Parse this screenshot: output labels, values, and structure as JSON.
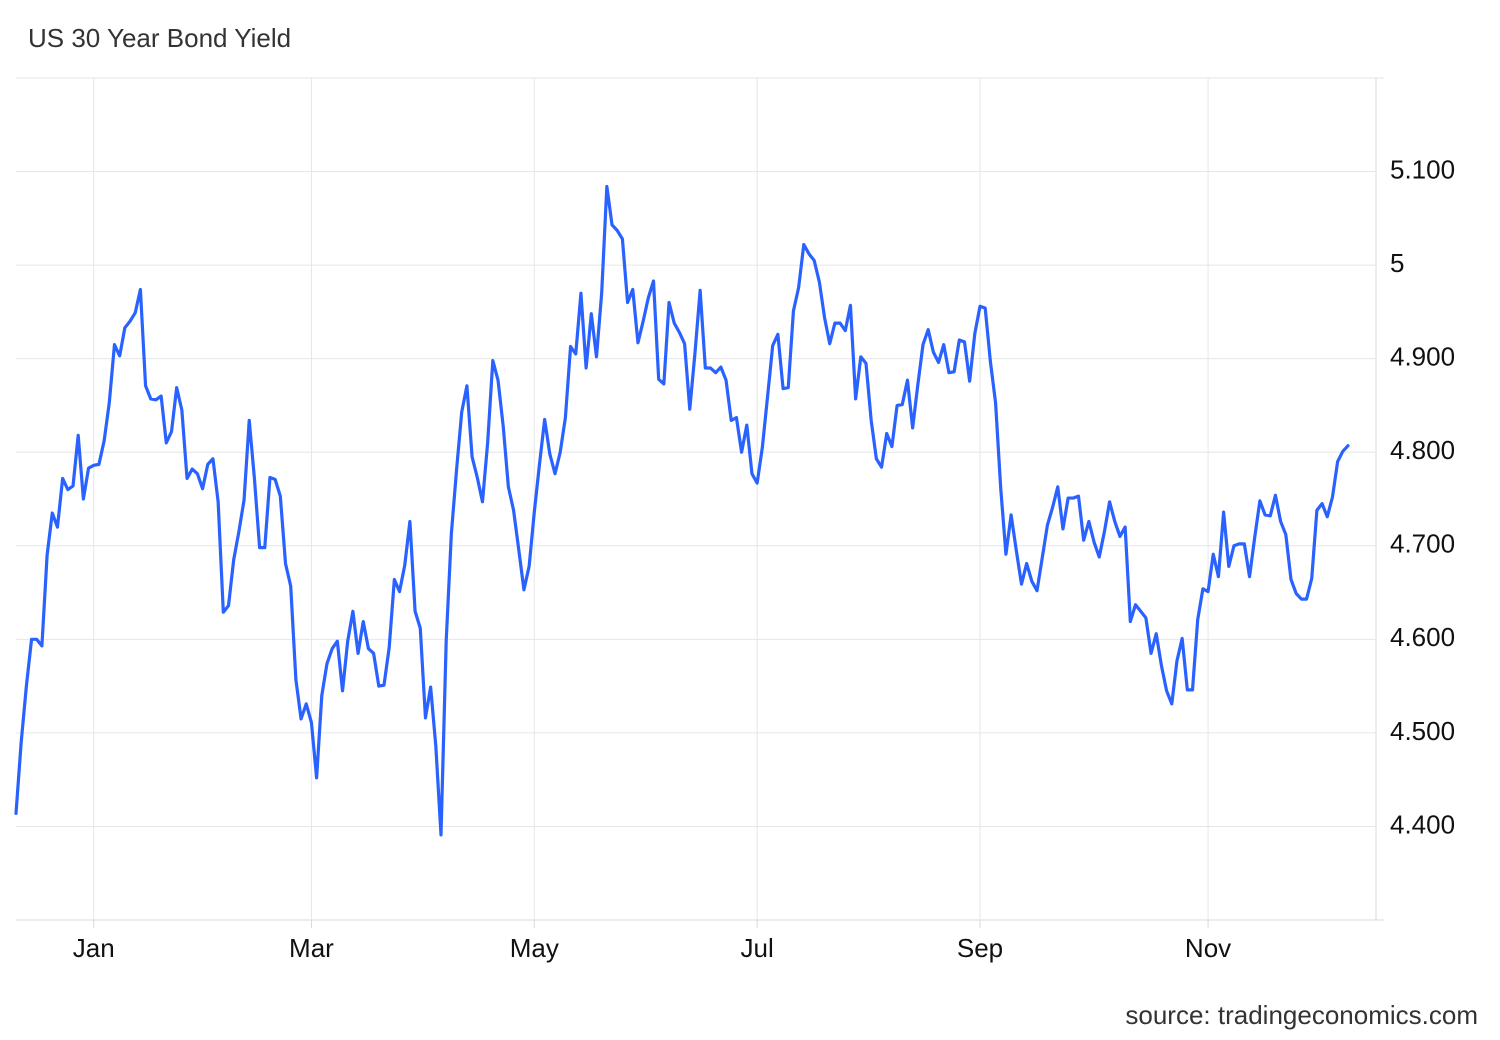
{
  "chart_data": {
    "type": "line",
    "title": "US 30 Year Bond Yield",
    "source": "source: tradingeconomics.com",
    "color": "#2962ff",
    "grid": true,
    "ylim": [
      4.3,
      5.2
    ],
    "yticks": [
      {
        "value": 4.4,
        "label": "4.400"
      },
      {
        "value": 4.5,
        "label": "4.500"
      },
      {
        "value": 4.6,
        "label": "4.600"
      },
      {
        "value": 4.7,
        "label": "4.700"
      },
      {
        "value": 4.8,
        "label": "4.800"
      },
      {
        "value": 4.9,
        "label": "4.900"
      },
      5,
      {
        "value": 5.1,
        "label": "5.100"
      }
    ],
    "categories": [
      null,
      null,
      null,
      null,
      null,
      null,
      null,
      null,
      null,
      null,
      null,
      null,
      null,
      null,
      null,
      "Jan",
      null,
      null,
      null,
      null,
      null,
      null,
      null,
      null,
      null,
      null,
      null,
      null,
      null,
      null,
      null,
      null,
      null,
      null,
      null,
      null,
      null,
      null,
      null,
      null,
      null,
      null,
      null,
      null,
      null,
      null,
      null,
      null,
      null,
      null,
      null,
      null,
      null,
      null,
      null,
      null,
      null,
      "Mar",
      null,
      null,
      null,
      null,
      null,
      null,
      null,
      null,
      null,
      null,
      null,
      null,
      null,
      null,
      null,
      null,
      null,
      null,
      null,
      null,
      null,
      null,
      null,
      null,
      null,
      null,
      null,
      null,
      null,
      null,
      null,
      null,
      null,
      null,
      null,
      null,
      null,
      null,
      null,
      null,
      null,
      null,
      "May",
      null,
      null,
      null,
      null,
      null,
      null,
      null,
      null,
      null,
      null,
      null,
      null,
      null,
      null,
      null,
      null,
      null,
      null,
      null,
      null,
      null,
      null,
      null,
      null,
      null,
      null,
      null,
      null,
      null,
      null,
      null,
      null,
      null,
      null,
      null,
      null,
      null,
      null,
      null,
      null,
      null,
      null,
      "Jul",
      null,
      null,
      null,
      null,
      null,
      null,
      null,
      null,
      null,
      null,
      null,
      null,
      null,
      null,
      null,
      null,
      null,
      null,
      null,
      null,
      null,
      null,
      null,
      null,
      null,
      null,
      null,
      null,
      null,
      null,
      null,
      null,
      null,
      null,
      null,
      null,
      null,
      null,
      null,
      null,
      null,
      null,
      "Sep",
      null,
      null,
      null,
      null,
      null,
      null,
      null,
      null,
      null,
      null,
      null,
      null,
      null,
      null,
      null,
      null,
      null,
      null,
      null,
      null,
      null,
      null,
      null,
      null,
      null,
      null,
      null,
      null,
      null,
      null,
      null,
      null,
      null,
      null,
      null,
      null,
      null,
      null,
      null,
      null,
      null,
      null,
      null,
      "Nov",
      null,
      null,
      null,
      null,
      null,
      null,
      null,
      null,
      null,
      null,
      null,
      null,
      null,
      null,
      null,
      null,
      null,
      null,
      null,
      null,
      null,
      null,
      null,
      null,
      null,
      null,
      null
    ],
    "values": [
      4.414,
      4.49,
      4.55,
      4.6,
      4.6,
      4.593,
      4.69,
      4.735,
      4.72,
      4.772,
      4.76,
      4.764,
      4.818,
      4.75,
      4.783,
      4.786,
      4.787,
      4.812,
      4.853,
      4.915,
      4.903,
      4.933,
      4.94,
      4.949,
      4.974,
      4.871,
      4.857,
      4.856,
      4.86,
      4.81,
      4.822,
      4.869,
      4.845,
      4.772,
      4.782,
      4.777,
      4.761,
      4.787,
      4.793,
      4.747,
      4.629,
      4.636,
      4.685,
      4.715,
      4.749,
      4.834,
      4.772,
      4.698,
      4.698,
      4.773,
      4.771,
      4.753,
      4.681,
      4.657,
      4.557,
      4.515,
      4.531,
      4.511,
      4.452,
      4.54,
      4.574,
      4.59,
      4.598,
      4.545,
      4.598,
      4.63,
      4.585,
      4.619,
      4.59,
      4.585,
      4.55,
      4.551,
      4.591,
      4.664,
      4.651,
      4.679,
      4.726,
      4.63,
      4.612,
      4.516,
      4.549,
      4.486,
      4.391,
      4.598,
      4.713,
      4.781,
      4.843,
      4.871,
      4.795,
      4.773,
      4.747,
      4.81,
      4.898,
      4.877,
      4.828,
      4.763,
      4.738,
      4.696,
      4.653,
      4.678,
      4.736,
      4.787,
      4.835,
      4.798,
      4.777,
      4.8,
      4.837,
      4.913,
      4.905,
      4.97,
      4.89,
      4.948,
      4.902,
      4.97,
      5.084,
      5.043,
      5.037,
      5.028,
      4.96,
      4.974,
      4.917,
      4.94,
      4.965,
      4.983,
      4.878,
      4.873,
      4.96,
      4.938,
      4.928,
      4.916,
      4.846,
      4.906,
      4.973,
      4.89,
      4.89,
      4.885,
      4.891,
      4.877,
      4.834,
      4.837,
      4.8,
      4.829,
      4.777,
      4.767,
      4.805,
      4.859,
      4.914,
      4.926,
      4.868,
      4.869,
      4.951,
      4.976,
      5.022,
      5.012,
      5.005,
      4.982,
      4.944,
      4.916,
      4.938,
      4.938,
      4.93,
      4.957,
      4.857,
      4.902,
      4.895,
      4.834,
      4.793,
      4.784,
      4.82,
      4.806,
      4.85,
      4.851,
      4.877,
      4.826,
      4.872,
      4.915,
      4.931,
      4.907,
      4.896,
      4.915,
      4.885,
      4.886,
      4.92,
      4.918,
      4.876,
      4.927,
      4.956,
      4.954,
      4.897,
      4.853,
      4.761,
      4.691,
      4.733,
      4.695,
      4.659,
      4.681,
      4.662,
      4.652,
      4.687,
      4.722,
      4.741,
      4.763,
      4.718,
      4.751,
      4.751,
      4.753,
      4.706,
      4.726,
      4.704,
      4.688,
      4.715,
      4.747,
      4.726,
      4.71,
      4.72,
      4.619,
      4.637,
      4.63,
      4.623,
      4.585,
      4.606,
      4.572,
      4.545,
      4.531,
      4.577,
      4.601,
      4.546,
      4.546,
      4.621,
      4.654,
      4.651,
      4.691,
      4.667,
      4.736,
      4.678,
      4.7,
      4.702,
      4.702,
      4.667,
      4.709,
      4.748,
      4.733,
      4.732,
      4.754,
      4.726,
      4.712,
      4.664,
      4.649,
      4.643,
      4.643,
      4.665,
      4.738,
      4.745,
      4.731,
      4.752,
      4.79,
      4.801,
      4.807
    ]
  }
}
